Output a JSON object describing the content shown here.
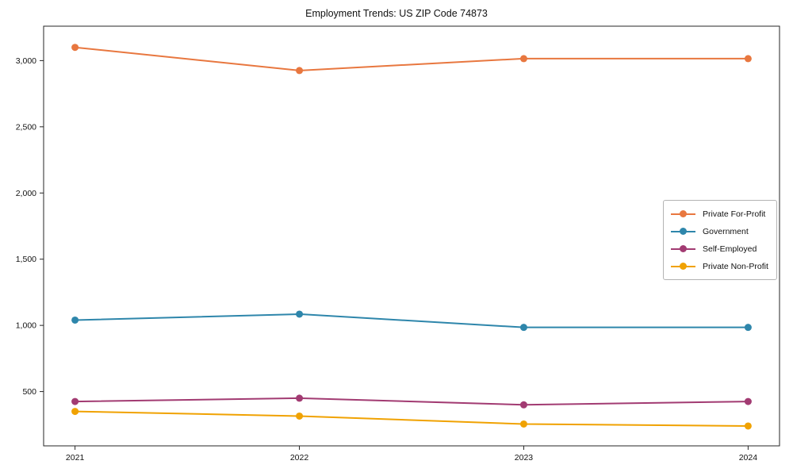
{
  "page": {
    "background": "#ffffff",
    "axis_color": "#262626",
    "text_color": "#111111"
  },
  "chart_data": {
    "type": "line",
    "title": "Employment Trends: US ZIP Code 74873",
    "xlabel": "",
    "ylabel": "",
    "categories": [
      2021,
      2022,
      2023,
      2024
    ],
    "x_tick_labels": [
      "2021",
      "2022",
      "2023",
      "2024"
    ],
    "series": [
      {
        "name": "Private For-Profit",
        "color": "#e8773f",
        "values": [
          3100,
          2925,
          3015,
          3015
        ]
      },
      {
        "name": "Government",
        "color": "#2e86ab",
        "values": [
          1040,
          1085,
          985,
          985
        ]
      },
      {
        "name": "Self-Employed",
        "color": "#a23b72",
        "values": [
          425,
          450,
          400,
          425
        ]
      },
      {
        "name": "Private Non-Profit",
        "color": "#f0a202",
        "values": [
          350,
          315,
          255,
          240
        ]
      }
    ],
    "yticks": [
      500,
      1000,
      1500,
      2000,
      2500,
      3000
    ],
    "ytick_labels": [
      "500",
      "1,000",
      "1,500",
      "2,000",
      "2,500",
      "3,000"
    ],
    "ylim": [
      90,
      3260
    ],
    "xlim": [
      2020.86,
      2024.14
    ],
    "grid": false,
    "legend_position": "center-right",
    "marker": "circle"
  }
}
